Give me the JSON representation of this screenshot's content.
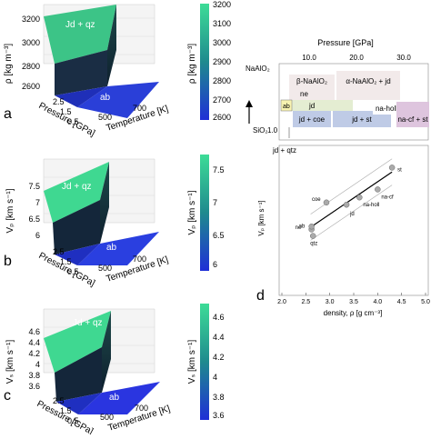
{
  "panels": {
    "a": {
      "letter": "a",
      "zlabel": "ρ [kg m⁻³]",
      "zticks": [
        "3200",
        "3000",
        "2800",
        "2600"
      ],
      "ylabel": "Pressure [GPa]",
      "yticks": [
        "2.5",
        "1.5",
        "0.5"
      ],
      "xlabel": "Temperature [K]",
      "xticks": [
        "500",
        "700"
      ],
      "label_top": "Jd + qz",
      "label_bottom": "ab",
      "cbar": {
        "ticks": [
          "3200",
          "3100",
          "3000",
          "2900",
          "2800",
          "2700",
          "2600"
        ],
        "label": "ρ [kg m⁻³]"
      }
    },
    "b": {
      "letter": "b",
      "zlabel": "Vₚ [km s⁻¹]",
      "zticks": [
        "7.5",
        "7",
        "6.5",
        "6"
      ],
      "ylabel": "Pressure [GPa]",
      "yticks": [
        "2.5",
        "1.5",
        "0.5"
      ],
      "xlabel": "Temperature [K]",
      "xticks": [
        "500",
        "700"
      ],
      "label_top": "Jd + qz",
      "label_bottom": "ab",
      "cbar": {
        "ticks": [
          "7.5",
          "7",
          "6.5",
          "6"
        ],
        "label": "Vₚ [km s⁻¹]"
      }
    },
    "c": {
      "letter": "c",
      "zlabel": "Vₛ [km s⁻¹]",
      "zticks": [
        "4.6",
        "4.4",
        "4.2",
        "4",
        "3.8",
        "3.6"
      ],
      "ylabel": "Pressure [GPa]",
      "yticks": [
        "2.5",
        "1.5",
        "0.5"
      ],
      "xlabel": "Temperature [K]",
      "xticks": [
        "500",
        "700"
      ],
      "label_top": "Jd + qz",
      "label_bottom": "ab",
      "cbar": {
        "ticks": [
          "4.6",
          "4.4",
          "4.2",
          "4",
          "3.8",
          "3.6"
        ],
        "label": "Vₛ [km s⁻¹]"
      }
    }
  },
  "phase": {
    "title": "Pressure [GPa]",
    "ticks": [
      "10.0",
      "20.0",
      "30.0"
    ],
    "naalo2": "NaAlO₂",
    "sio2": "SiO₂",
    "sio2_val": "1.0",
    "cells": {
      "beta": "β-NaAlO₂",
      "alpha": "α-NaAlO₂ + jd",
      "ne": "ne",
      "jd": "jd",
      "ab": "ab",
      "jdcoe": "jd + coe",
      "jdst": "jd + st",
      "nahol": "na-holl",
      "nacf": "na-cf + st",
      "jdqtz": "jd + qtz"
    }
  },
  "panel_d": {
    "letter": "d",
    "xlabel": "density, ρ [g cm⁻³]",
    "ylabel": "Vₚ [km s⁻¹]",
    "xticks": [
      "2.0",
      "2.5",
      "3.0",
      "3.5",
      "4.0",
      "4.5",
      "5.0"
    ]
  },
  "chart_data": {
    "type": "scatter",
    "xlabel": "density, ρ [g cm⁻³]",
    "ylabel": "Vₚ [km s⁻¹]",
    "xlim": [
      2.0,
      5.0
    ],
    "ylim": [
      0,
      10
    ],
    "points": [
      {
        "label": "qtz",
        "x": 2.65,
        "y": 3.9
      },
      {
        "label": "ab",
        "x": 2.62,
        "y": 4.35
      },
      {
        "label": "ne",
        "x": 2.62,
        "y": 4.55
      },
      {
        "label": "coe",
        "x": 2.93,
        "y": 6.2
      },
      {
        "label": "jd",
        "x": 3.35,
        "y": 6.05
      },
      {
        "label": "na-holl",
        "x": 3.62,
        "y": 6.55
      },
      {
        "label": "na-cf",
        "x": 4.0,
        "y": 7.1
      },
      {
        "label": "st",
        "x": 4.3,
        "y": 8.6
      }
    ],
    "fit": [
      [
        2.6,
        4.5
      ],
      [
        4.3,
        8.3
      ]
    ]
  }
}
